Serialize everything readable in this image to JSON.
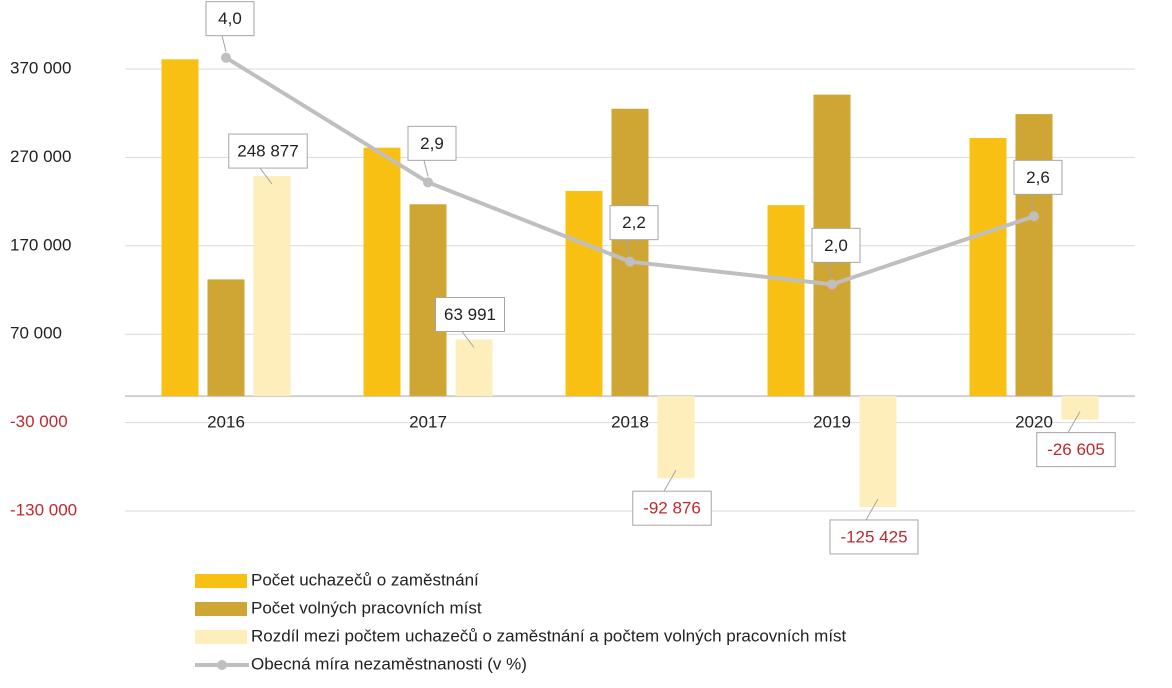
{
  "chart_data": {
    "type": "bar",
    "categories": [
      "2016",
      "2017",
      "2018",
      "2019",
      "2020"
    ],
    "ylim": [
      -130000,
      370000
    ],
    "yticks": [
      {
        "value": -130000,
        "label": "-130 000"
      },
      {
        "value": -30000,
        "label": "-30 000"
      },
      {
        "value": 70000,
        "label": "70 000"
      },
      {
        "value": 170000,
        "label": "170 000"
      },
      {
        "value": 270000,
        "label": "270 000"
      },
      {
        "value": 370000,
        "label": "370 000"
      }
    ],
    "y2lim": [
      0,
      3.9
    ],
    "y2ticks": [],
    "grid": true,
    "series": [
      {
        "name": "Počet uchazečů o zaměstnání",
        "color": "#f9c014",
        "values": [
          381000,
          281000,
          232000,
          216000,
          292000
        ]
      },
      {
        "name": "Počet volných pracovních míst",
        "color": "#cfa634",
        "values": [
          132000,
          217000,
          325000,
          341000,
          319000
        ]
      },
      {
        "name": "Rozdíl mezi počtem uchazečů o zaměstnání a počtem volných pracovních míst",
        "color": "#fdeebb",
        "values": [
          248877,
          63991,
          -92876,
          -125425,
          -26605
        ],
        "value_labels": [
          "248 877",
          "63 991",
          "-92 876",
          "-125 425",
          "-26 605"
        ]
      },
      {
        "name": "Obecná míra nezaměstnanosti (v %)",
        "color": "#bfbfbf",
        "type": "line",
        "axis": "y2",
        "values": [
          4.0,
          2.9,
          2.2,
          2.0,
          2.6
        ],
        "value_labels": [
          "4,0",
          "2,9",
          "2,2",
          "2,0",
          "2,6"
        ]
      }
    ]
  }
}
